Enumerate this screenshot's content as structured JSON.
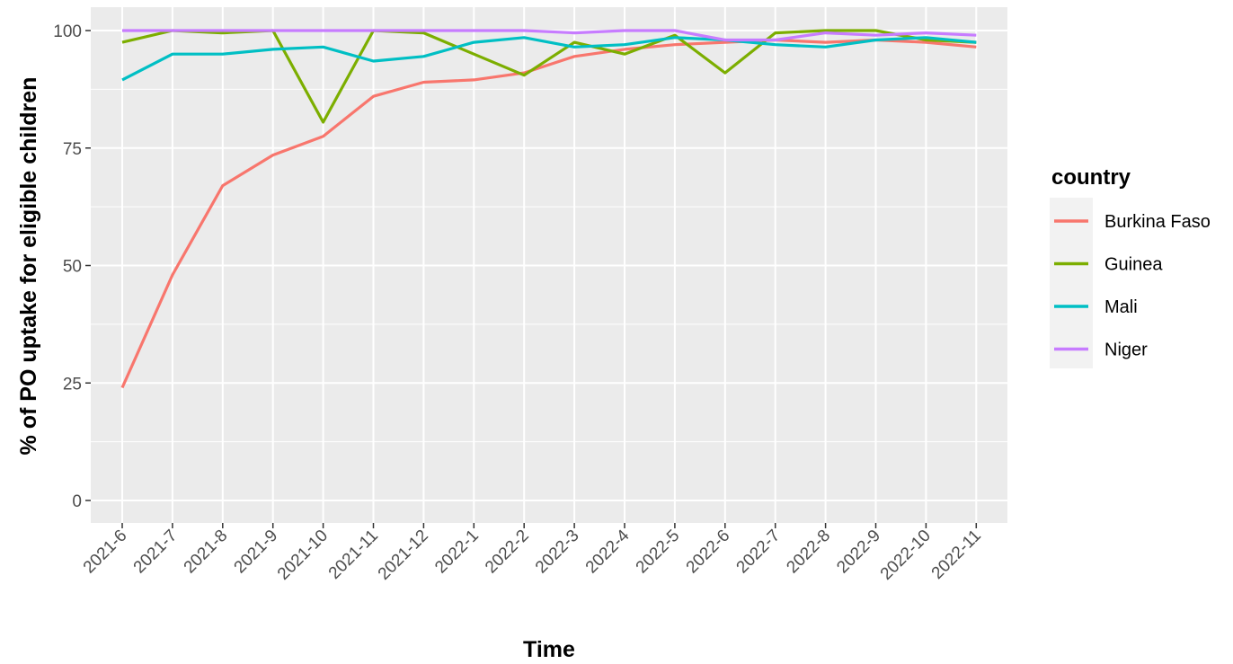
{
  "chart_data": {
    "type": "line",
    "title": "",
    "xlabel": "Time",
    "ylabel": "% of PO uptake for eligible children",
    "x": [
      "2021-6",
      "2021-7",
      "2021-8",
      "2021-9",
      "2021-10",
      "2021-11",
      "2021-12",
      "2022-1",
      "2022-2",
      "2022-3",
      "2022-4",
      "2022-5",
      "2022-6",
      "2022-7",
      "2022-8",
      "2022-9",
      "2022-10",
      "2022-11"
    ],
    "y_ticks": [
      0,
      25,
      50,
      75,
      100
    ],
    "ylim": [
      0,
      100
    ],
    "grid": true,
    "legend": {
      "title": "country",
      "position": "right"
    },
    "series": [
      {
        "name": "Burkina Faso",
        "color": "#F8766D",
        "values": [
          24,
          48,
          67,
          73.5,
          77.5,
          86,
          89,
          89.5,
          91,
          94.5,
          96,
          97,
          97.5,
          98,
          97.5,
          98,
          97.5,
          96.5
        ]
      },
      {
        "name": "Guinea",
        "color": "#7CAE00",
        "values": [
          97.5,
          100,
          99.5,
          100,
          80.5,
          100,
          99.5,
          95,
          90.5,
          97.5,
          95,
          99,
          91,
          99.5,
          100,
          100,
          98,
          97.5
        ]
      },
      {
        "name": "Mali",
        "color": "#00BFC4",
        "values": [
          89.5,
          95,
          95,
          96,
          96.5,
          93.5,
          94.5,
          97.5,
          98.5,
          96.5,
          97,
          98.5,
          98,
          97,
          96.5,
          98,
          98.5,
          97.5
        ]
      },
      {
        "name": "Niger",
        "color": "#C77CFF",
        "values": [
          100,
          100,
          100,
          100,
          100,
          100,
          100,
          100,
          100,
          99.5,
          100,
          100,
          98,
          98,
          99.5,
          99,
          99.5,
          99
        ]
      }
    ]
  }
}
